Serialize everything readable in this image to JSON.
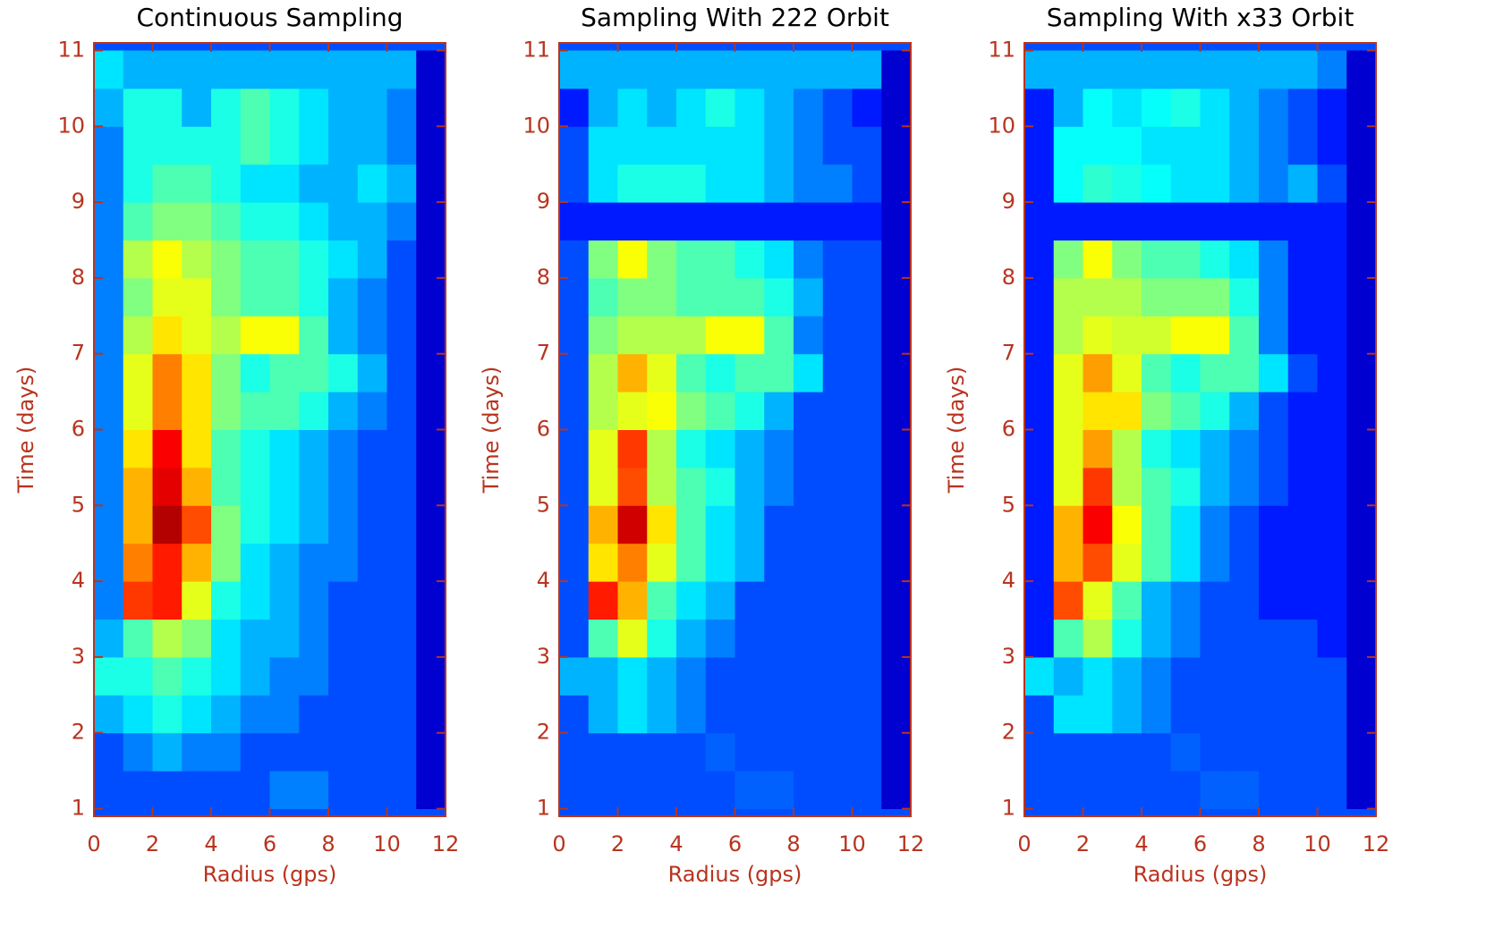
{
  "chart_data": [
    {
      "type": "heatmap",
      "title": "Continuous Sampling",
      "xlabel": "Radius (gps)",
      "ylabel": "Time (days)",
      "colormap": "jet",
      "axis_color": "#b8341f",
      "xlim": [
        0,
        12
      ],
      "ylim": [
        0.9,
        11.1
      ],
      "xticks": [
        0,
        2,
        4,
        6,
        8,
        10,
        12
      ],
      "yticks": [
        1,
        2,
        3,
        4,
        5,
        6,
        7,
        8,
        9,
        10,
        11
      ],
      "x": [
        0.5,
        1.5,
        2.5,
        3.5,
        4.5,
        5.5,
        6.5,
        7.5,
        8.5,
        9.5,
        10.5,
        11.5
      ],
      "y": [
        1.25,
        1.75,
        2.25,
        2.75,
        3.25,
        3.75,
        4.25,
        4.75,
        5.25,
        5.75,
        6.25,
        6.75,
        7.25,
        7.75,
        8.25,
        8.75,
        9.25,
        9.75,
        10.25,
        10.75
      ],
      "z": [
        [
          0.2,
          0.2,
          0.2,
          0.2,
          0.2,
          0.2,
          0.25,
          0.25,
          0.2,
          0.2,
          0.2,
          0.08
        ],
        [
          0.2,
          0.25,
          0.3,
          0.25,
          0.25,
          0.2,
          0.2,
          0.2,
          0.2,
          0.2,
          0.2,
          0.08
        ],
        [
          0.3,
          0.35,
          0.4,
          0.35,
          0.3,
          0.25,
          0.25,
          0.2,
          0.2,
          0.2,
          0.2,
          0.08
        ],
        [
          0.4,
          0.4,
          0.45,
          0.4,
          0.35,
          0.3,
          0.25,
          0.25,
          0.2,
          0.2,
          0.2,
          0.08
        ],
        [
          0.3,
          0.45,
          0.55,
          0.5,
          0.35,
          0.3,
          0.3,
          0.25,
          0.2,
          0.2,
          0.2,
          0.08
        ],
        [
          0.25,
          0.82,
          0.85,
          0.6,
          0.4,
          0.35,
          0.3,
          0.25,
          0.2,
          0.2,
          0.2,
          0.08
        ],
        [
          0.25,
          0.75,
          0.85,
          0.7,
          0.5,
          0.35,
          0.3,
          0.25,
          0.25,
          0.2,
          0.2,
          0.08
        ],
        [
          0.25,
          0.7,
          0.95,
          0.8,
          0.5,
          0.4,
          0.35,
          0.3,
          0.25,
          0.2,
          0.2,
          0.08
        ],
        [
          0.25,
          0.7,
          0.9,
          0.7,
          0.45,
          0.4,
          0.35,
          0.3,
          0.25,
          0.2,
          0.2,
          0.08
        ],
        [
          0.25,
          0.65,
          0.88,
          0.65,
          0.45,
          0.4,
          0.35,
          0.3,
          0.25,
          0.2,
          0.2,
          0.08
        ],
        [
          0.25,
          0.6,
          0.75,
          0.65,
          0.5,
          0.45,
          0.45,
          0.4,
          0.3,
          0.25,
          0.2,
          0.08
        ],
        [
          0.25,
          0.6,
          0.75,
          0.65,
          0.5,
          0.4,
          0.45,
          0.45,
          0.4,
          0.3,
          0.2,
          0.08
        ],
        [
          0.25,
          0.55,
          0.65,
          0.6,
          0.55,
          0.62,
          0.62,
          0.45,
          0.3,
          0.25,
          0.2,
          0.08
        ],
        [
          0.25,
          0.5,
          0.6,
          0.6,
          0.5,
          0.45,
          0.45,
          0.4,
          0.3,
          0.25,
          0.2,
          0.08
        ],
        [
          0.25,
          0.55,
          0.62,
          0.55,
          0.5,
          0.45,
          0.45,
          0.4,
          0.35,
          0.3,
          0.2,
          0.08
        ],
        [
          0.25,
          0.45,
          0.5,
          0.5,
          0.45,
          0.4,
          0.4,
          0.35,
          0.3,
          0.3,
          0.25,
          0.08
        ],
        [
          0.25,
          0.4,
          0.45,
          0.45,
          0.4,
          0.35,
          0.35,
          0.3,
          0.3,
          0.35,
          0.3,
          0.08
        ],
        [
          0.25,
          0.4,
          0.4,
          0.4,
          0.4,
          0.45,
          0.4,
          0.35,
          0.3,
          0.3,
          0.25,
          0.08
        ],
        [
          0.3,
          0.4,
          0.4,
          0.3,
          0.4,
          0.45,
          0.4,
          0.35,
          0.3,
          0.3,
          0.25,
          0.08
        ],
        [
          0.35,
          0.3,
          0.3,
          0.3,
          0.3,
          0.3,
          0.3,
          0.3,
          0.3,
          0.3,
          0.3,
          0.08
        ]
      ]
    },
    {
      "type": "heatmap",
      "title": "Sampling With 222 Orbit",
      "xlabel": "Radius (gps)",
      "ylabel": "Time (days)",
      "colormap": "jet",
      "axis_color": "#b8341f",
      "xlim": [
        0,
        12
      ],
      "ylim": [
        0.9,
        11.1
      ],
      "xticks": [
        0,
        2,
        4,
        6,
        8,
        10,
        12
      ],
      "yticks": [
        1,
        2,
        3,
        4,
        5,
        6,
        7,
        8,
        9,
        10,
        11
      ],
      "x": [
        0.5,
        1.5,
        2.5,
        3.5,
        4.5,
        5.5,
        6.5,
        7.5,
        8.5,
        9.5,
        10.5,
        11.5
      ],
      "y": [
        1.25,
        1.75,
        2.25,
        2.75,
        3.25,
        3.75,
        4.25,
        4.75,
        5.25,
        5.75,
        6.25,
        6.75,
        7.25,
        7.75,
        8.25,
        8.75,
        9.25,
        9.75,
        10.25,
        10.75
      ],
      "z": [
        [
          0.2,
          0.2,
          0.2,
          0.2,
          0.2,
          0.2,
          0.22,
          0.22,
          0.2,
          0.2,
          0.2,
          0.08
        ],
        [
          0.2,
          0.2,
          0.2,
          0.2,
          0.2,
          0.22,
          0.2,
          0.2,
          0.2,
          0.2,
          0.2,
          0.08
        ],
        [
          0.2,
          0.3,
          0.35,
          0.3,
          0.25,
          0.2,
          0.2,
          0.2,
          0.2,
          0.2,
          0.2,
          0.08
        ],
        [
          0.3,
          0.3,
          0.35,
          0.3,
          0.25,
          0.2,
          0.2,
          0.2,
          0.2,
          0.2,
          0.2,
          0.08
        ],
        [
          0.2,
          0.45,
          0.6,
          0.4,
          0.3,
          0.25,
          0.2,
          0.2,
          0.2,
          0.2,
          0.2,
          0.08
        ],
        [
          0.2,
          0.85,
          0.7,
          0.45,
          0.35,
          0.3,
          0.2,
          0.2,
          0.2,
          0.2,
          0.2,
          0.08
        ],
        [
          0.2,
          0.65,
          0.75,
          0.6,
          0.45,
          0.35,
          0.3,
          0.2,
          0.2,
          0.2,
          0.2,
          0.08
        ],
        [
          0.2,
          0.7,
          0.92,
          0.65,
          0.45,
          0.35,
          0.3,
          0.2,
          0.2,
          0.2,
          0.2,
          0.08
        ],
        [
          0.2,
          0.6,
          0.8,
          0.55,
          0.45,
          0.4,
          0.3,
          0.25,
          0.2,
          0.2,
          0.2,
          0.08
        ],
        [
          0.2,
          0.6,
          0.82,
          0.55,
          0.4,
          0.35,
          0.3,
          0.25,
          0.2,
          0.2,
          0.2,
          0.08
        ],
        [
          0.2,
          0.55,
          0.6,
          0.62,
          0.5,
          0.45,
          0.4,
          0.3,
          0.2,
          0.2,
          0.2,
          0.08
        ],
        [
          0.2,
          0.55,
          0.7,
          0.6,
          0.45,
          0.4,
          0.45,
          0.45,
          0.35,
          0.2,
          0.2,
          0.08
        ],
        [
          0.2,
          0.5,
          0.55,
          0.55,
          0.55,
          0.62,
          0.62,
          0.45,
          0.25,
          0.2,
          0.2,
          0.08
        ],
        [
          0.2,
          0.45,
          0.5,
          0.5,
          0.45,
          0.45,
          0.45,
          0.4,
          0.3,
          0.2,
          0.2,
          0.08
        ],
        [
          0.2,
          0.5,
          0.62,
          0.5,
          0.45,
          0.45,
          0.4,
          0.35,
          0.25,
          0.2,
          0.2,
          0.08
        ],
        [
          0.15,
          0.15,
          0.15,
          0.15,
          0.15,
          0.15,
          0.15,
          0.15,
          0.15,
          0.15,
          0.15,
          0.08
        ],
        [
          0.2,
          0.35,
          0.4,
          0.4,
          0.4,
          0.35,
          0.35,
          0.3,
          0.25,
          0.25,
          0.2,
          0.08
        ],
        [
          0.2,
          0.35,
          0.35,
          0.35,
          0.35,
          0.35,
          0.35,
          0.3,
          0.25,
          0.2,
          0.2,
          0.08
        ],
        [
          0.15,
          0.3,
          0.35,
          0.3,
          0.35,
          0.4,
          0.35,
          0.3,
          0.25,
          0.2,
          0.15,
          0.08
        ],
        [
          0.3,
          0.3,
          0.3,
          0.3,
          0.3,
          0.3,
          0.3,
          0.3,
          0.3,
          0.3,
          0.3,
          0.08
        ]
      ]
    },
    {
      "type": "heatmap",
      "title": "Sampling With x33 Orbit",
      "xlabel": "Radius (gps)",
      "ylabel": "Time (days)",
      "colormap": "jet",
      "axis_color": "#b8341f",
      "xlim": [
        0,
        12
      ],
      "ylim": [
        0.9,
        11.1
      ],
      "xticks": [
        0,
        2,
        4,
        6,
        8,
        10,
        12
      ],
      "yticks": [
        1,
        2,
        3,
        4,
        5,
        6,
        7,
        8,
        9,
        10,
        11
      ],
      "x": [
        0.5,
        1.5,
        2.5,
        3.5,
        4.5,
        5.5,
        6.5,
        7.5,
        8.5,
        9.5,
        10.5,
        11.5
      ],
      "y": [
        1.25,
        1.75,
        2.25,
        2.75,
        3.25,
        3.75,
        4.25,
        4.75,
        5.25,
        5.75,
        6.25,
        6.75,
        7.25,
        7.75,
        8.25,
        8.75,
        9.25,
        9.75,
        10.25,
        10.75
      ],
      "z": [
        [
          0.2,
          0.2,
          0.2,
          0.2,
          0.2,
          0.2,
          0.22,
          0.22,
          0.2,
          0.2,
          0.2,
          0.08
        ],
        [
          0.2,
          0.2,
          0.2,
          0.2,
          0.2,
          0.22,
          0.2,
          0.2,
          0.2,
          0.2,
          0.2,
          0.08
        ],
        [
          0.2,
          0.35,
          0.35,
          0.3,
          0.25,
          0.2,
          0.2,
          0.2,
          0.2,
          0.2,
          0.2,
          0.08
        ],
        [
          0.35,
          0.3,
          0.35,
          0.3,
          0.25,
          0.2,
          0.2,
          0.2,
          0.2,
          0.2,
          0.2,
          0.08
        ],
        [
          0.15,
          0.45,
          0.55,
          0.4,
          0.3,
          0.25,
          0.2,
          0.2,
          0.2,
          0.2,
          0.15,
          0.08
        ],
        [
          0.15,
          0.8,
          0.6,
          0.45,
          0.3,
          0.25,
          0.2,
          0.2,
          0.15,
          0.15,
          0.15,
          0.08
        ],
        [
          0.15,
          0.7,
          0.8,
          0.6,
          0.45,
          0.35,
          0.25,
          0.2,
          0.15,
          0.15,
          0.15,
          0.08
        ],
        [
          0.15,
          0.7,
          0.88,
          0.62,
          0.45,
          0.35,
          0.25,
          0.2,
          0.15,
          0.15,
          0.15,
          0.08
        ],
        [
          0.15,
          0.6,
          0.82,
          0.55,
          0.45,
          0.4,
          0.3,
          0.25,
          0.2,
          0.15,
          0.15,
          0.08
        ],
        [
          0.15,
          0.6,
          0.72,
          0.55,
          0.4,
          0.35,
          0.3,
          0.25,
          0.2,
          0.15,
          0.15,
          0.08
        ],
        [
          0.15,
          0.6,
          0.65,
          0.65,
          0.5,
          0.45,
          0.4,
          0.3,
          0.2,
          0.15,
          0.15,
          0.08
        ],
        [
          0.15,
          0.6,
          0.72,
          0.6,
          0.45,
          0.4,
          0.45,
          0.45,
          0.35,
          0.2,
          0.15,
          0.08
        ],
        [
          0.15,
          0.55,
          0.6,
          0.58,
          0.58,
          0.62,
          0.62,
          0.45,
          0.25,
          0.15,
          0.15,
          0.08
        ],
        [
          0.15,
          0.55,
          0.55,
          0.55,
          0.5,
          0.5,
          0.5,
          0.4,
          0.25,
          0.15,
          0.15,
          0.08
        ],
        [
          0.15,
          0.5,
          0.62,
          0.5,
          0.45,
          0.45,
          0.4,
          0.35,
          0.25,
          0.15,
          0.15,
          0.08
        ],
        [
          0.15,
          0.15,
          0.15,
          0.15,
          0.15,
          0.15,
          0.15,
          0.15,
          0.15,
          0.15,
          0.15,
          0.08
        ],
        [
          0.15,
          0.38,
          0.42,
          0.4,
          0.38,
          0.35,
          0.35,
          0.3,
          0.25,
          0.3,
          0.2,
          0.08
        ],
        [
          0.15,
          0.38,
          0.38,
          0.38,
          0.35,
          0.35,
          0.35,
          0.3,
          0.25,
          0.2,
          0.15,
          0.08
        ],
        [
          0.15,
          0.3,
          0.38,
          0.35,
          0.38,
          0.4,
          0.35,
          0.3,
          0.25,
          0.2,
          0.15,
          0.08
        ],
        [
          0.3,
          0.3,
          0.3,
          0.3,
          0.3,
          0.3,
          0.3,
          0.3,
          0.3,
          0.3,
          0.25,
          0.08
        ]
      ]
    }
  ]
}
